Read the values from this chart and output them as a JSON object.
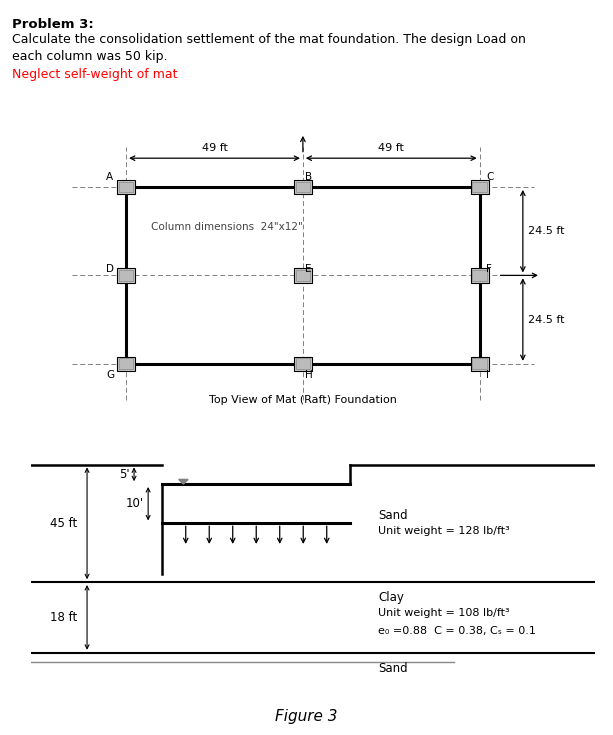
{
  "title_bold": "Problem 3:",
  "title_normal1": "Calculate the consolidation settlement of the mat foundation. The design Load on",
  "title_normal2": "each column was 50 kip.",
  "title_red": "Neglect self-weight of mat",
  "plan_title": "Top View of Mat (Raft) Foundation",
  "figure_label": "Figure 3",
  "col_dim_text": "Column dimensions  24\"x12\"",
  "dim_49ft_left": "49 ft",
  "dim_49ft_right": "49 ft",
  "dim_24_5_top": "24.5 ft",
  "dim_24_5_bot": "24.5 ft",
  "sand_label": "Sand",
  "sand_unit": "Unit weight = 128 lb/ft³",
  "clay_label": "Clay",
  "clay_unit": "Unit weight = 108 lb/ft³",
  "clay_params": "e₀ =0.88  C⁣ = 0.38, Cₛ = 0.1",
  "sand_bottom": "Sand",
  "depth_5": "5'",
  "depth_10": "10'",
  "depth_45": "45 ft",
  "depth_18": "18 ft",
  "bg_color": "#ffffff"
}
